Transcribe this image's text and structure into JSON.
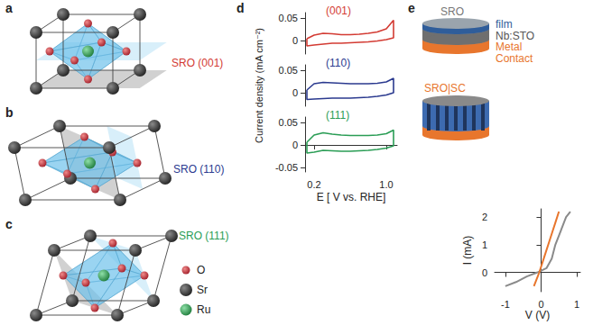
{
  "diagrams": {
    "a": {
      "letter": "a",
      "label": "SRO (001)",
      "color": "#d33b33"
    },
    "b": {
      "letter": "b",
      "label": "SRO (110)",
      "color": "#2b3a8f"
    },
    "c": {
      "letter": "c",
      "label": "SRO (111)",
      "color": "#2a9d55"
    },
    "atoms": [
      "O",
      "Sr",
      "Ru"
    ],
    "e": {
      "letter": "e",
      "top": {
        "title": "SRO",
        "layers": [
          "film",
          "Nb:STO",
          "Metal Contact"
        ]
      },
      "bottom": {
        "title": "SRO|SC"
      }
    }
  },
  "chart_data": [
    {
      "panel": "d",
      "type": "line",
      "xlabel": "E [ V vs. RHE]",
      "ylabel": "Current density (mA cm⁻²)",
      "xlim": [
        0.1,
        1.12
      ],
      "xticks": [
        0.2,
        {
          "value": 1.0,
          "label": "1.0"
        }
      ],
      "series": [
        {
          "name": "(001)",
          "color": "#d33b33",
          "ylim": [
            -0.03,
            0.062
          ],
          "yticks": [
            0,
            0.05
          ],
          "x": [
            0.12,
            0.12,
            0.2,
            0.3,
            0.4,
            0.5,
            0.6,
            0.7,
            0.8,
            0.9,
            1.0,
            1.08,
            1.08,
            1.0,
            0.9,
            0.8,
            0.7,
            0.6,
            0.5,
            0.4,
            0.3,
            0.2,
            0.12
          ],
          "values": [
            0.004,
            -0.012,
            -0.01,
            -0.008,
            -0.006,
            -0.006,
            -0.005,
            -0.004,
            -0.003,
            -0.001,
            0.002,
            0.006,
            0.045,
            0.026,
            0.019,
            0.016,
            0.014,
            0.013,
            0.013,
            0.015,
            0.016,
            0.012,
            0.004
          ]
        },
        {
          "name": "(110)",
          "color": "#2b3a8f",
          "ylim": [
            -0.03,
            0.062
          ],
          "yticks": [
            0,
            0.05
          ],
          "x": [
            0.12,
            0.12,
            0.2,
            0.3,
            0.4,
            0.5,
            0.6,
            0.7,
            0.8,
            0.9,
            1.0,
            1.08,
            1.08,
            1.0,
            0.9,
            0.8,
            0.7,
            0.6,
            0.5,
            0.4,
            0.3,
            0.2,
            0.12
          ],
          "values": [
            0.006,
            -0.015,
            -0.014,
            -0.013,
            -0.012,
            -0.012,
            -0.012,
            -0.011,
            -0.01,
            -0.008,
            -0.005,
            0.0,
            0.032,
            0.024,
            0.021,
            0.02,
            0.02,
            0.02,
            0.021,
            0.022,
            0.023,
            0.02,
            0.006
          ]
        },
        {
          "name": "(111)",
          "color": "#2a9d55",
          "ylim": [
            -0.06,
            0.062
          ],
          "yticks": [
            -0.05,
            0,
            0.05
          ],
          "x": [
            0.12,
            0.12,
            0.2,
            0.3,
            0.4,
            0.5,
            0.6,
            0.7,
            0.8,
            0.9,
            1.0,
            1.08,
            1.08,
            1.0,
            0.9,
            0.8,
            0.7,
            0.6,
            0.5,
            0.4,
            0.3,
            0.2,
            0.12
          ],
          "values": [
            0.006,
            -0.018,
            -0.016,
            -0.012,
            -0.013,
            -0.014,
            -0.014,
            -0.013,
            -0.012,
            -0.01,
            -0.007,
            -0.002,
            0.033,
            0.025,
            0.022,
            0.021,
            0.021,
            0.021,
            0.022,
            0.024,
            0.027,
            0.022,
            0.006
          ]
        }
      ]
    },
    {
      "type": "line",
      "xlabel": "V (V)",
      "ylabel": "I (mA)",
      "xlim": [
        -1.3,
        1.1
      ],
      "xticks": [
        -1,
        0,
        1
      ],
      "ylim": [
        -0.7,
        2.3
      ],
      "yticks": [
        0,
        1,
        2
      ],
      "series": [
        {
          "color": "#8a8a8a",
          "x": [
            -1.0,
            -0.7,
            -0.4,
            -0.1,
            0.15,
            0.3,
            0.4,
            0.55,
            0.7,
            0.82
          ],
          "values": [
            -0.5,
            -0.35,
            -0.15,
            0.0,
            0.15,
            0.5,
            1.0,
            1.5,
            2.0,
            2.2
          ]
        },
        {
          "color": "#e8762d",
          "x": [
            -0.2,
            -0.05,
            0.1,
            0.25,
            0.4,
            0.5
          ],
          "values": [
            -0.5,
            0.0,
            0.6,
            1.2,
            1.8,
            2.2
          ]
        }
      ]
    }
  ]
}
